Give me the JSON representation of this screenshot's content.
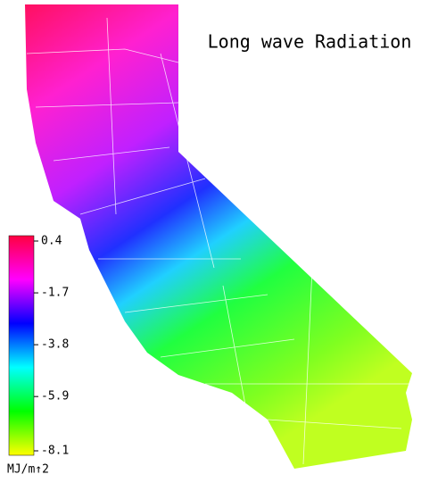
{
  "title": "Long wave Radiation",
  "colorbar": {
    "unit": "MJ/m↑2",
    "range": [
      -8.1,
      0.4
    ],
    "ticks": [
      0.4,
      -1.7,
      -3.8,
      -5.9,
      -8.1
    ],
    "colors": [
      "#ffff00",
      "#00ff00",
      "#00ffff",
      "#0000ff",
      "#ff00ff",
      "#ff0040"
    ]
  }
}
